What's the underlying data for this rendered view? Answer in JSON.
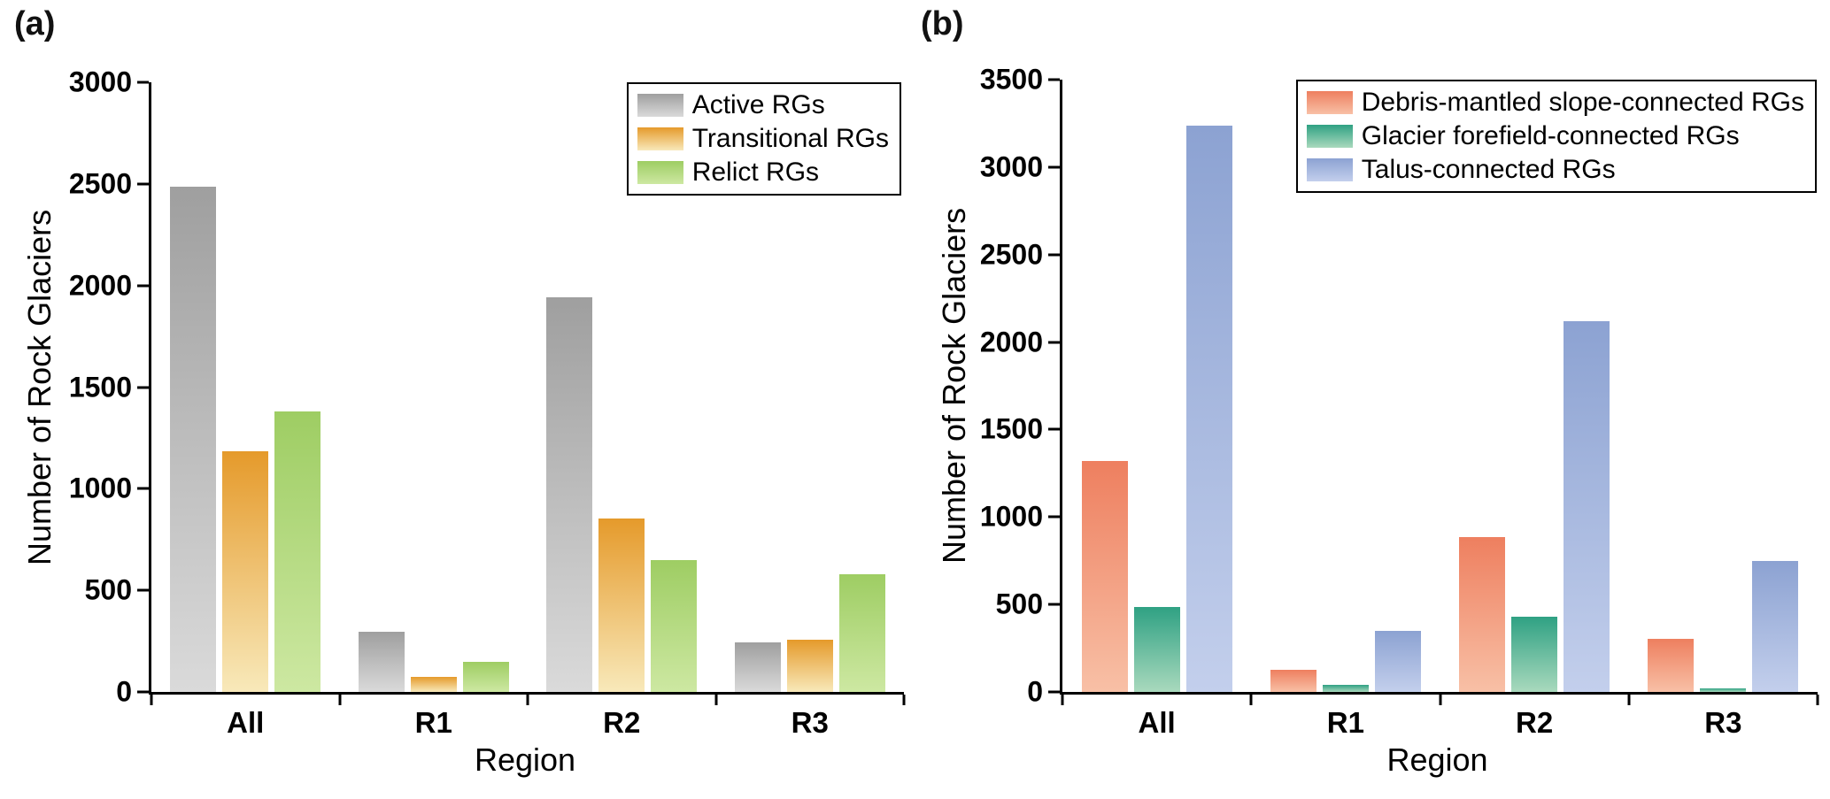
{
  "figure": {
    "background": "#ffffff"
  },
  "panels": [
    {
      "label": "(a)",
      "y_title": "Number of Rock Glaciers",
      "x_title": "Region"
    },
    {
      "label": "(b)",
      "y_title": "Number of Rock Glaciers",
      "x_title": "Region"
    }
  ],
  "chart_data": [
    {
      "type": "bar",
      "panel": "(a)",
      "categories": [
        "All",
        "R1",
        "R2",
        "R3"
      ],
      "series": [
        {
          "name": "Active RGs",
          "values": [
            2485,
            295,
            1940,
            245
          ],
          "color_top": "#9f9f9f",
          "color_bottom": "#dadada"
        },
        {
          "name": "Transitional RGs",
          "values": [
            1185,
            75,
            855,
            255
          ],
          "color_top": "#e59a2b",
          "color_bottom": "#f8e9ba"
        },
        {
          "name": "Relict RGs",
          "values": [
            1380,
            150,
            650,
            580
          ],
          "color_top": "#9ecd63",
          "color_bottom": "#cde8a2"
        }
      ],
      "xlabel": "Region",
      "ylabel": "Number of Rock Glaciers",
      "ylim": [
        0,
        3000
      ],
      "yticks": [
        0,
        500,
        1000,
        1500,
        2000,
        2500,
        3000
      ],
      "grid": false,
      "legend_position": "top-right"
    },
    {
      "type": "bar",
      "panel": "(b)",
      "categories": [
        "All",
        "R1",
        "R2",
        "R3"
      ],
      "series": [
        {
          "name": "Debris-mantled slope-connected RGs",
          "values": [
            1320,
            125,
            885,
            305
          ],
          "color_top": "#ee7f5f",
          "color_bottom": "#f8c0a6"
        },
        {
          "name": "Glacier forefield-connected RGs",
          "values": [
            485,
            40,
            430,
            20
          ],
          "color_top": "#2fa183",
          "color_bottom": "#a9d9bd"
        },
        {
          "name": "Talus-connected RGs",
          "values": [
            3235,
            350,
            2120,
            750
          ],
          "color_top": "#8ca2d2",
          "color_bottom": "#c3cfec"
        }
      ],
      "xlabel": "Region",
      "ylabel": "Number of Rock Glaciers",
      "ylim": [
        0,
        3500
      ],
      "yticks": [
        0,
        500,
        1000,
        1500,
        2000,
        2500,
        3000,
        3500
      ],
      "grid": false,
      "legend_position": "top-right"
    }
  ]
}
